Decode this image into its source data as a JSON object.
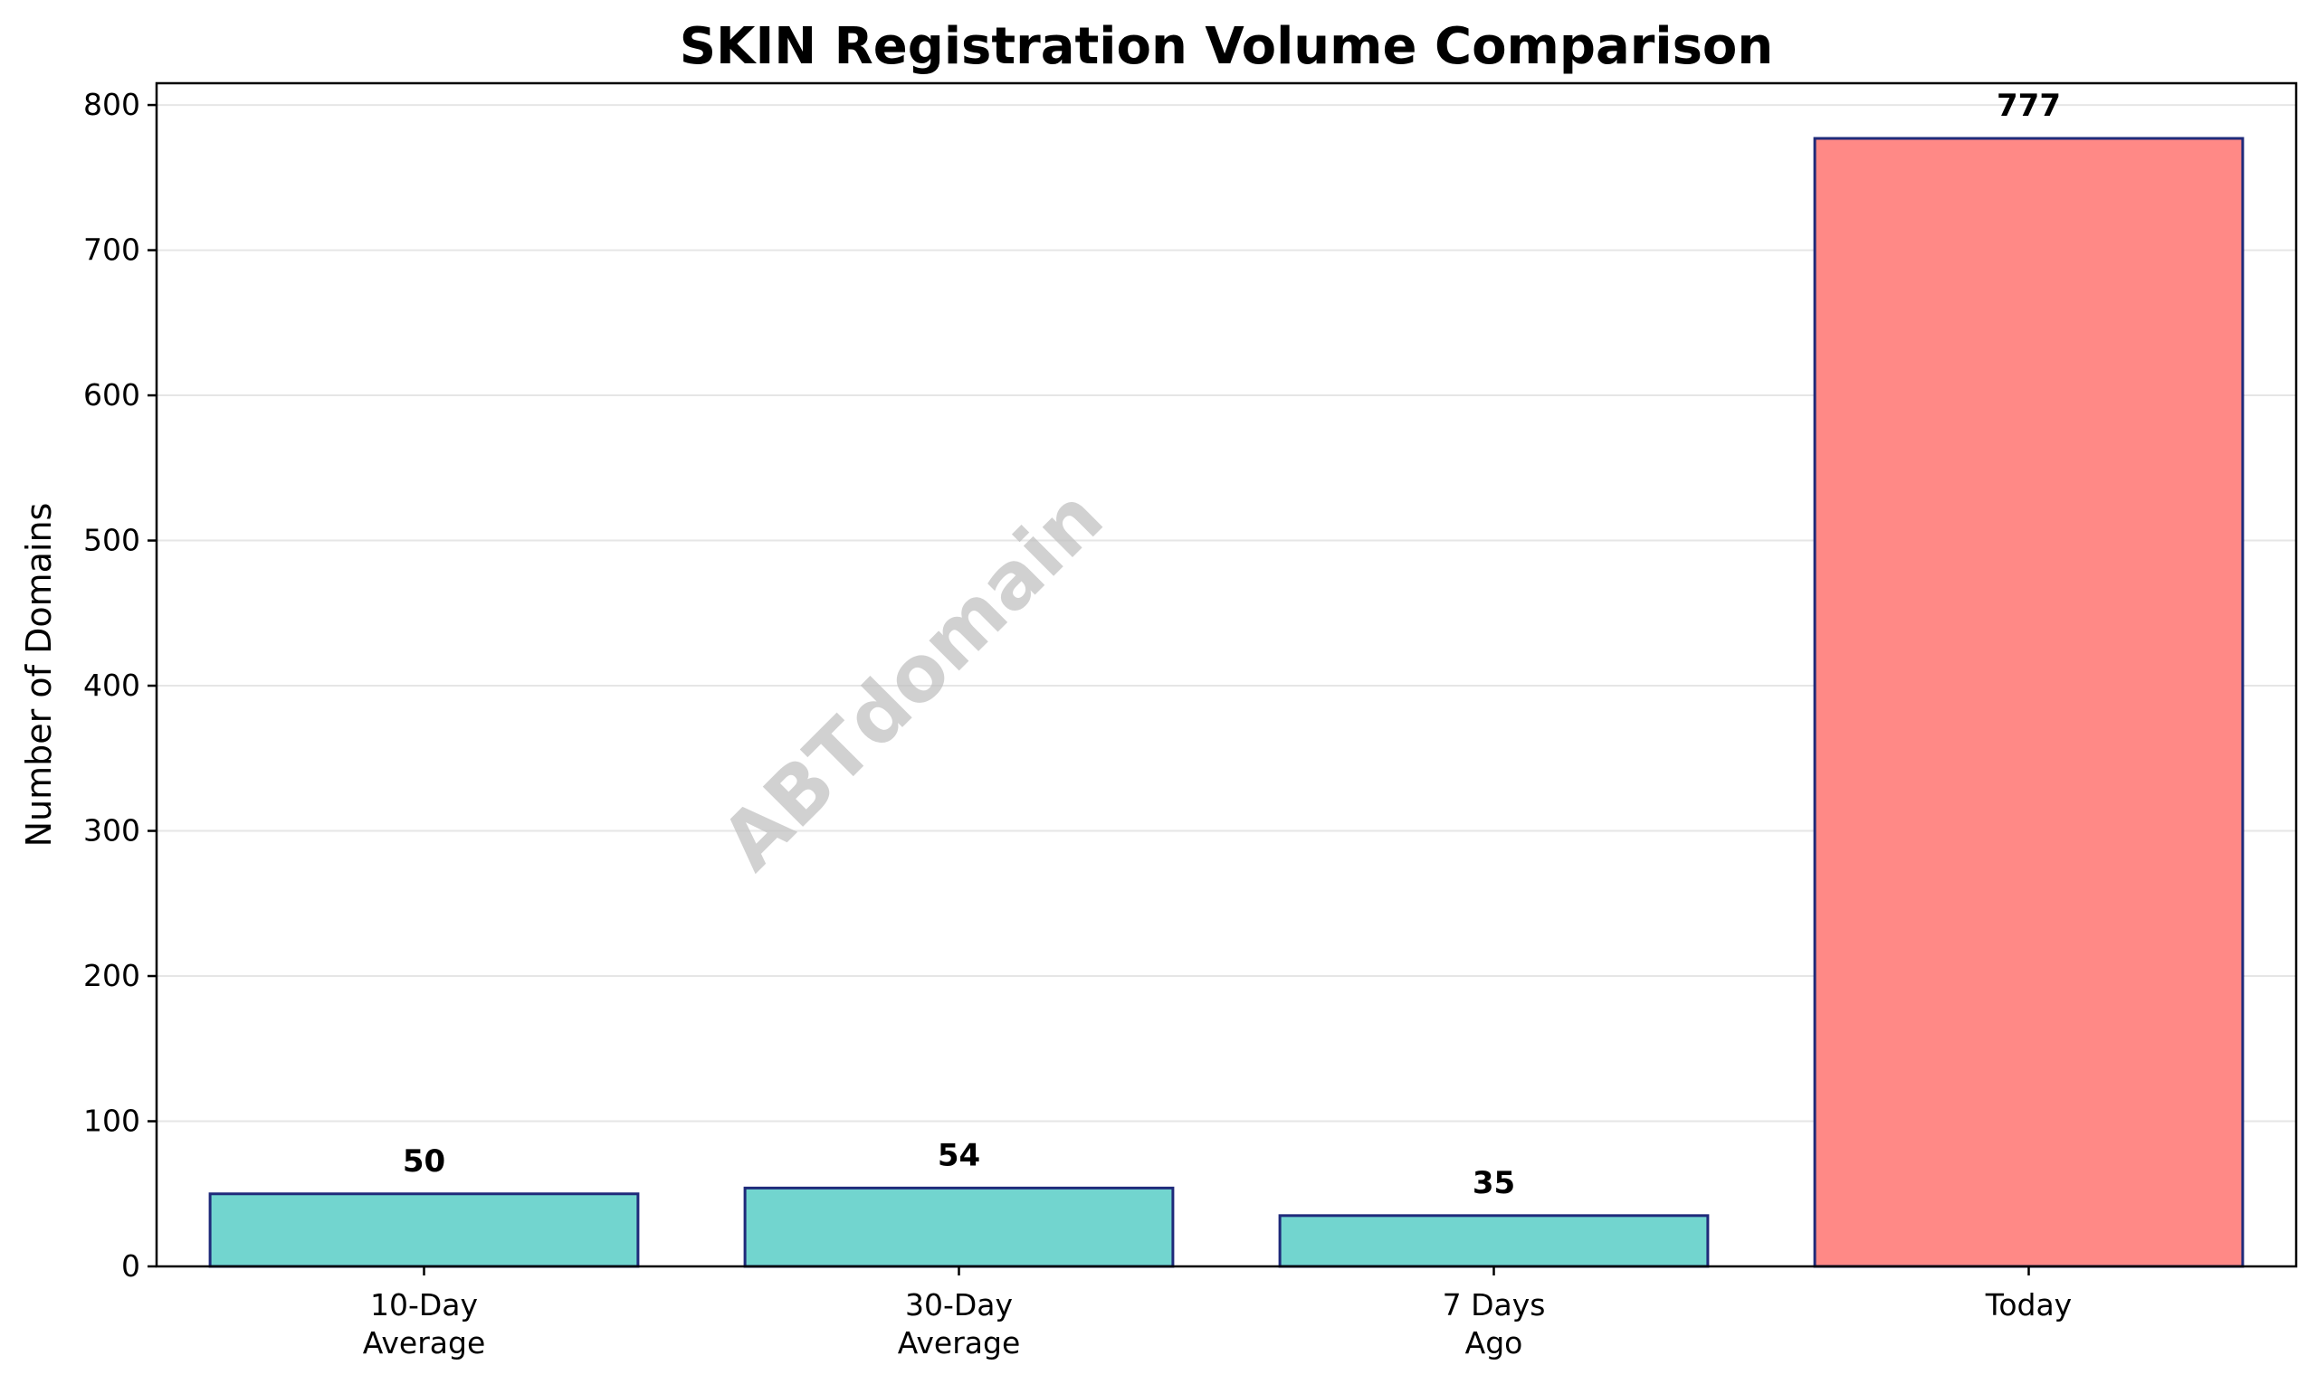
{
  "chart_data": {
    "type": "bar",
    "title": "SKIN Registration Volume Comparison",
    "xlabel": "",
    "ylabel": "Number of Domains",
    "categories": [
      "10-Day\nAverage",
      "30-Day\nAverage",
      "7 Days\nAgo",
      "Today"
    ],
    "values": [
      50,
      54,
      35,
      777
    ],
    "value_labels": [
      "50",
      "54",
      "35",
      "777"
    ],
    "ylim": [
      0,
      815
    ],
    "yticks": [
      0,
      100,
      200,
      300,
      400,
      500,
      600,
      700,
      800
    ],
    "grid": {
      "y": true,
      "x": false
    },
    "bar_colors": [
      "#72d5cf",
      "#72d5cf",
      "#72d5cf",
      "#ff8986"
    ],
    "bar_edge_color": "#1f2a7a",
    "grid_color": "#e6e6e6",
    "watermark": "ABTdomain",
    "legend": "none"
  }
}
